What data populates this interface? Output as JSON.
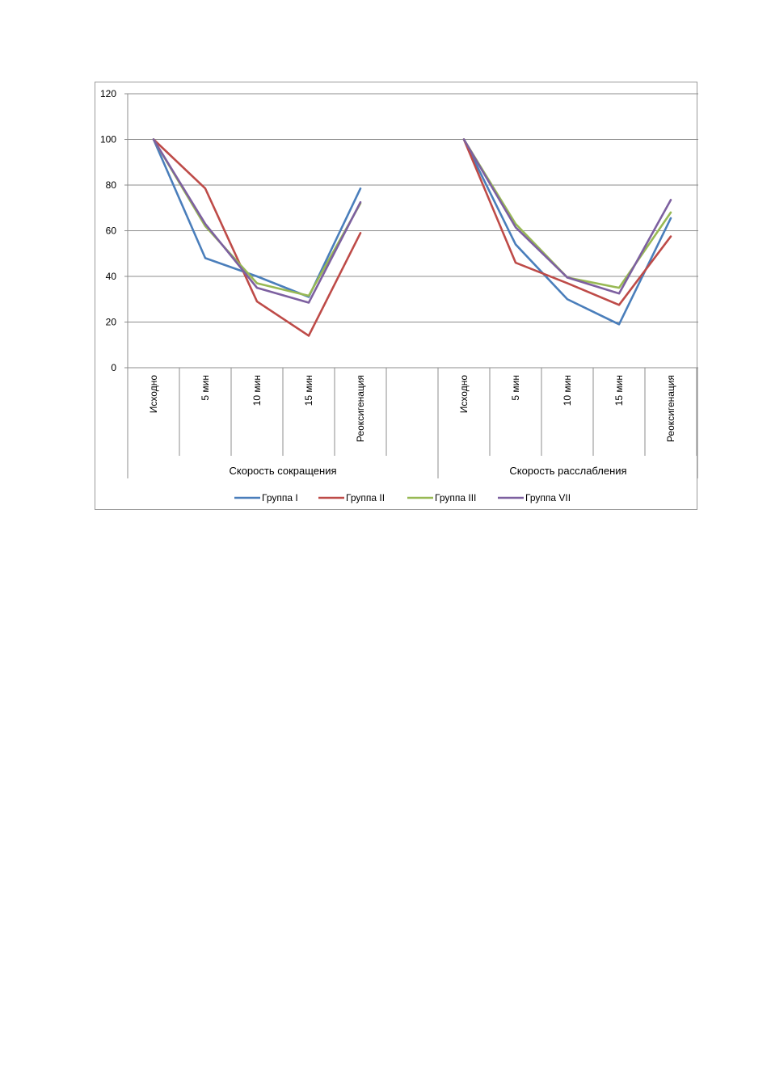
{
  "chart_data": {
    "type": "line",
    "ylim": [
      0,
      120
    ],
    "yticks": [
      "0",
      "20",
      "40",
      "60",
      "80",
      "100",
      "120"
    ],
    "grid": true,
    "legend_position": "bottom",
    "groups": [
      {
        "label": "Скорость сокращения",
        "categories": [
          "Исходно",
          "5 мин",
          "10 мин",
          "15 мин",
          "Реоксигенация"
        ]
      },
      {
        "label": "Скорость расслабления",
        "categories": [
          "Исходно",
          "5 мин",
          "10 мин",
          "15 мин",
          "Реоксигенация"
        ]
      }
    ],
    "series": [
      {
        "name": "Группа I",
        "color": "#4a7ebb",
        "values": [
          [
            100,
            48,
            40,
            31,
            78.5
          ],
          [
            100,
            54,
            30,
            19,
            65.5
          ]
        ]
      },
      {
        "name": "Группа II",
        "color": "#be4b48",
        "values": [
          [
            100,
            78.5,
            29,
            14,
            59
          ],
          [
            100,
            46,
            37,
            27.5,
            57.5
          ]
        ]
      },
      {
        "name": "Группа III",
        "color": "#98b954",
        "values": [
          [
            100,
            62,
            37,
            31.5,
            72
          ],
          [
            100,
            63,
            39.5,
            35,
            68
          ]
        ]
      },
      {
        "name": "Группа VII",
        "color": "#7d60a0",
        "values": [
          [
            100,
            63,
            35,
            28.5,
            72.5
          ],
          [
            100,
            61.5,
            39.5,
            32.5,
            73.5
          ]
        ]
      }
    ]
  }
}
